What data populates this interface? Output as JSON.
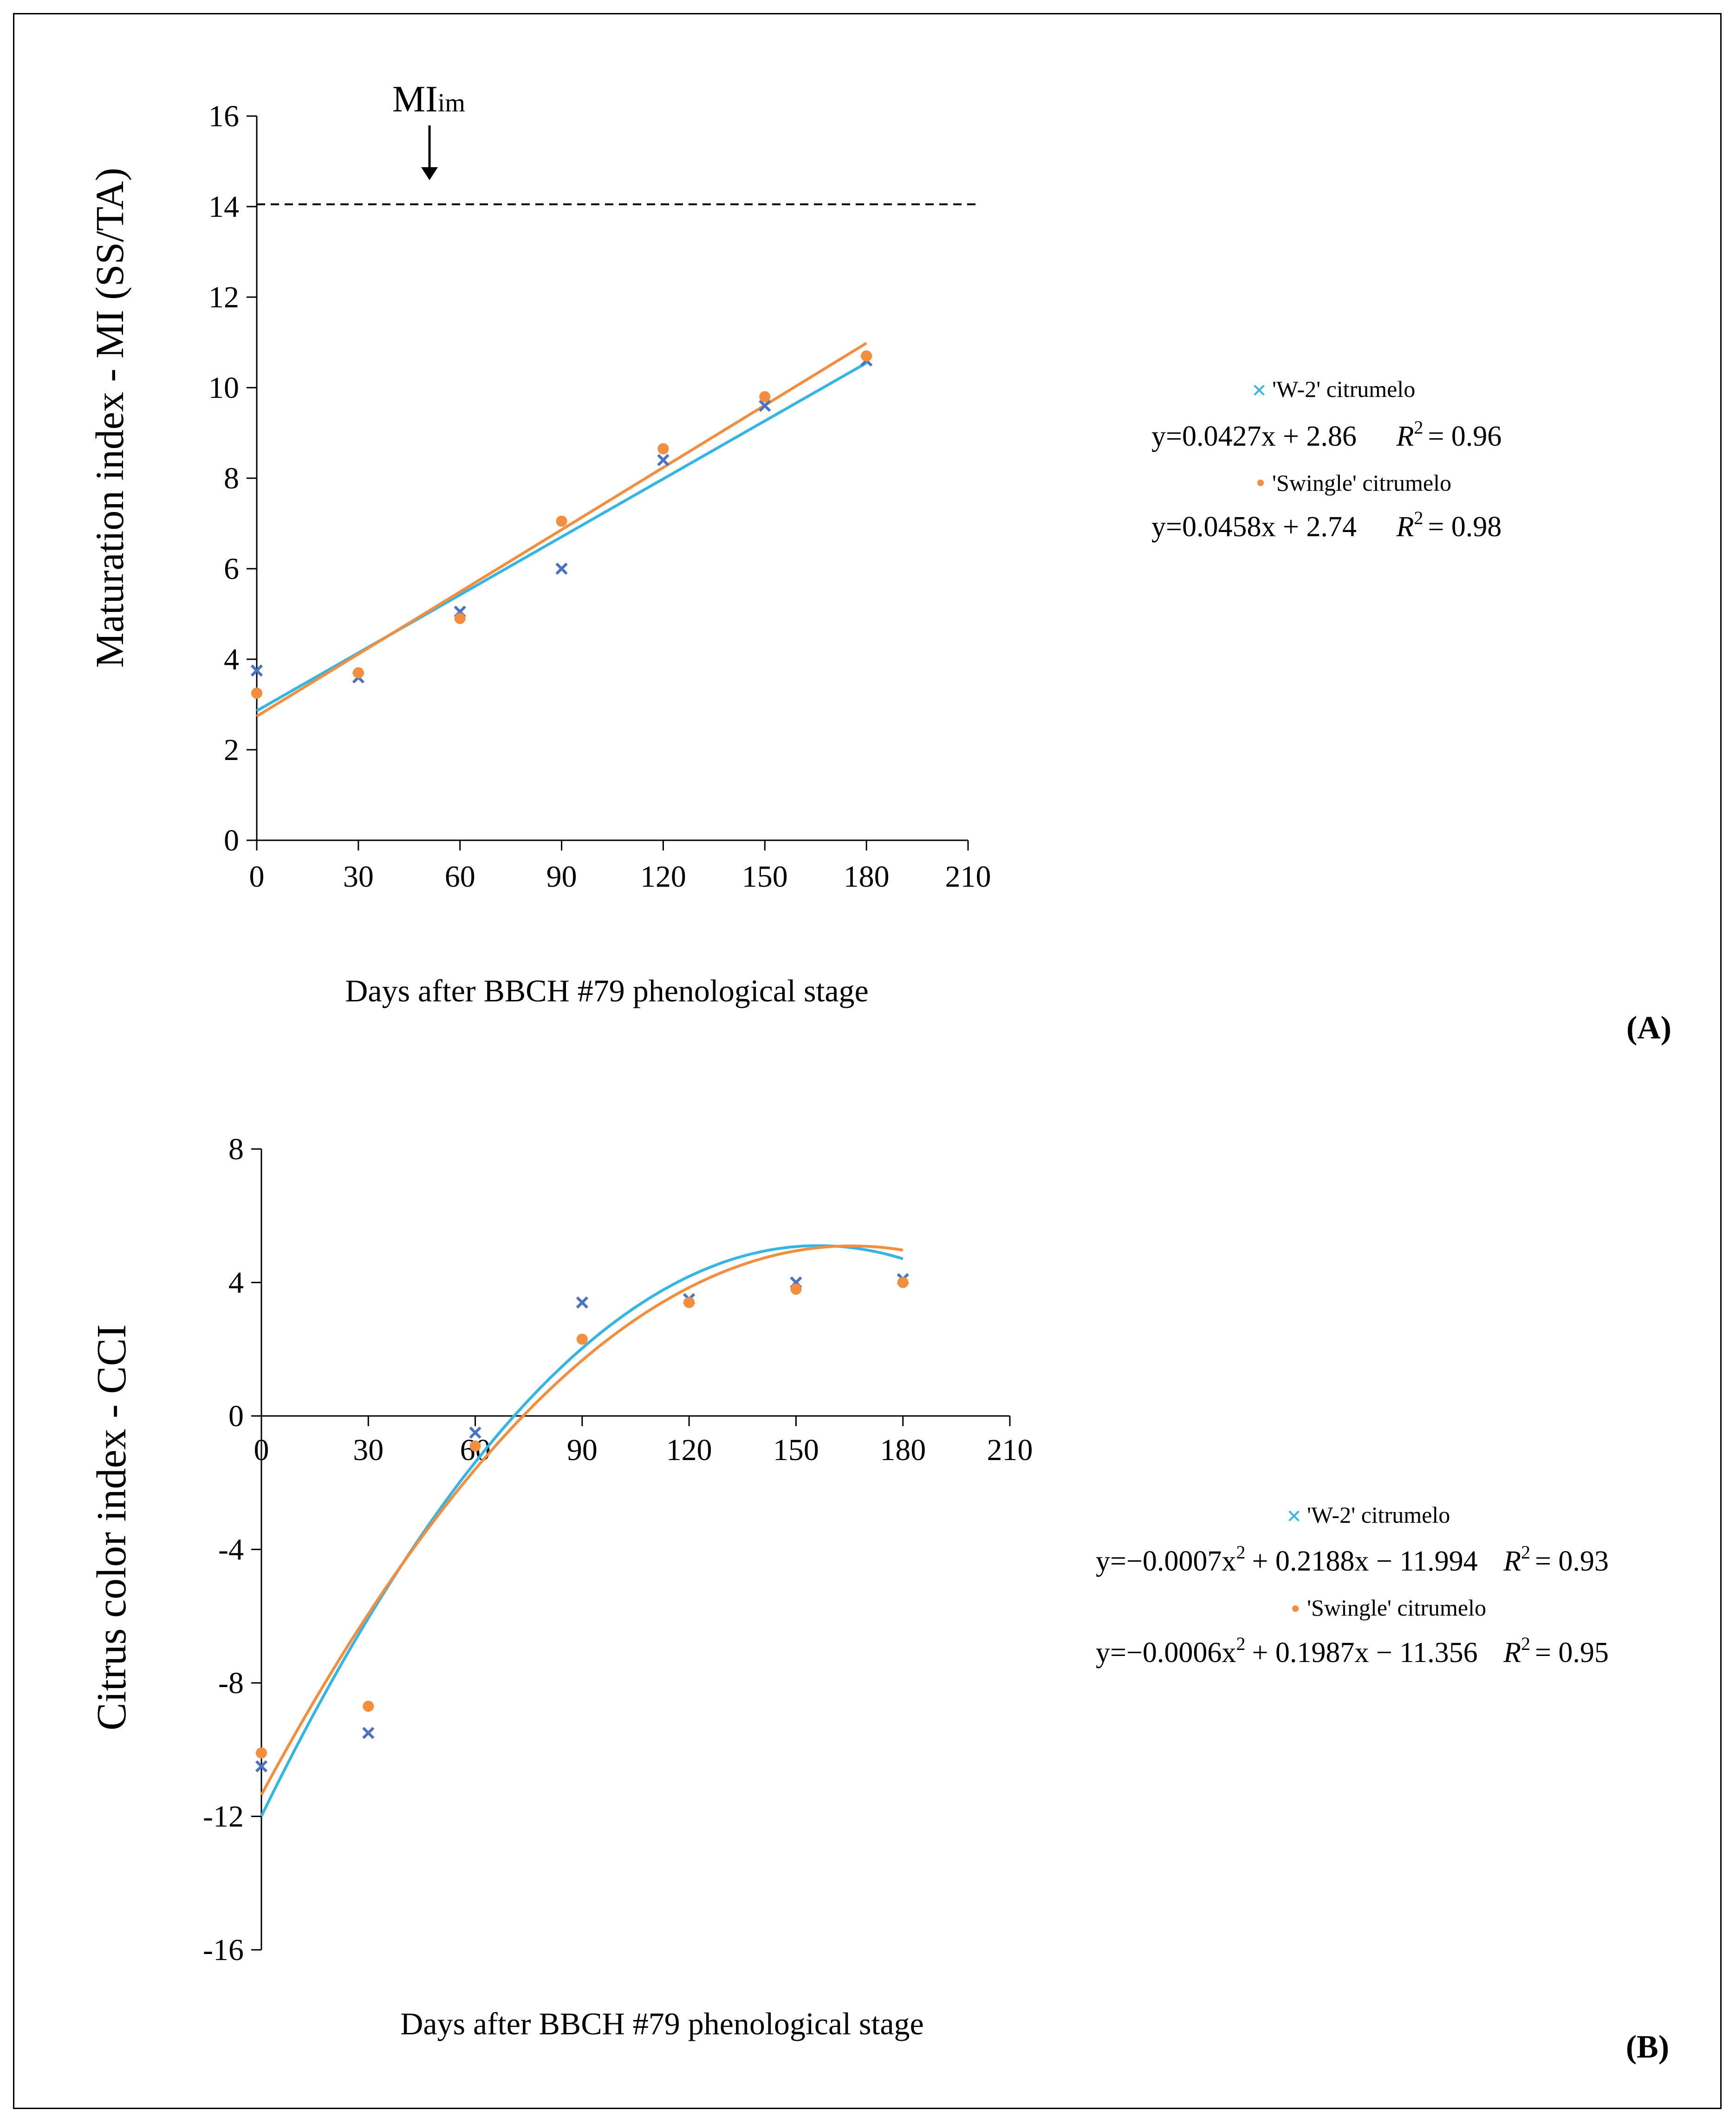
{
  "colors": {
    "w2": "#33B5E5",
    "w2_marker": "#4A73C4",
    "swingle": "#F28E3D",
    "axis": "#000000"
  },
  "chart_data": [
    {
      "panel": "(A)",
      "type": "scatter",
      "xlabel": "Days after BBCH #79 phenological stage",
      "ylabel": "Maturation index - MI (SS/TA)",
      "xlim": [
        0,
        210
      ],
      "ylim": [
        0,
        16
      ],
      "xticks": [
        "0",
        "30",
        "60",
        "90",
        "120",
        "150",
        "180",
        "210"
      ],
      "yticks": [
        "0",
        "2",
        "4",
        "6",
        "8",
        "10",
        "12",
        "14",
        "16"
      ],
      "reference_line": {
        "y": 14.05,
        "label_main": "MI",
        "label_sub": "im",
        "arrow_x": 51
      },
      "series": [
        {
          "name": "'W-2' citrumelo",
          "marker": "x",
          "x": [
            0,
            30,
            60,
            90,
            120,
            150,
            180
          ],
          "y": [
            3.75,
            3.6,
            5.05,
            6.0,
            8.4,
            9.6,
            10.6
          ],
          "fit": {
            "kind": "linear",
            "a": 0,
            "b": 0.0427,
            "c": 2.86
          },
          "equation": "y=0.0427x + 2.86",
          "r2_value": "= 0.96"
        },
        {
          "name": "'Swingle' citrumelo",
          "marker": "dot",
          "x": [
            0,
            30,
            60,
            90,
            120,
            150,
            180
          ],
          "y": [
            3.25,
            3.7,
            4.9,
            7.05,
            8.65,
            9.8,
            10.7
          ],
          "fit": {
            "kind": "linear",
            "a": 0,
            "b": 0.0458,
            "c": 2.74
          },
          "equation": "y=0.0458x + 2.74",
          "r2_value": "= 0.98"
        }
      ]
    },
    {
      "panel": "(B)",
      "type": "scatter",
      "xlabel": "Days after BBCH #79 phenological stage",
      "ylabel": "Citrus color index - CCI",
      "xlim": [
        0,
        210
      ],
      "ylim": [
        -16,
        8
      ],
      "xticks": [
        "0",
        "30",
        "60",
        "90",
        "120",
        "150",
        "180",
        "210"
      ],
      "yticks": [
        "-16",
        "-12",
        "-8",
        "-4",
        "0",
        "4",
        "8"
      ],
      "series": [
        {
          "name": "'W-2' citrumelo",
          "marker": "x",
          "x": [
            0,
            30,
            60,
            90,
            120,
            150,
            180
          ],
          "y": [
            -10.5,
            -9.5,
            -0.5,
            3.4,
            3.5,
            4.0,
            4.1
          ],
          "fit": {
            "kind": "quadratic",
            "a": -0.0007,
            "b": 0.2188,
            "c": -11.994
          },
          "equation": "y=−0.0007x2 + 0.2188x − 11.994",
          "r2_value": "= 0.93"
        },
        {
          "name": "'Swingle' citrumelo",
          "marker": "dot",
          "x": [
            0,
            30,
            60,
            90,
            120,
            150,
            180
          ],
          "y": [
            -10.1,
            -8.7,
            -0.9,
            2.3,
            3.4,
            3.8,
            4.0
          ],
          "fit": {
            "kind": "quadratic",
            "a": -0.0006,
            "b": 0.1987,
            "c": -11.356
          },
          "equation": "y=−0.0006x2 + 0.1987x − 11.356",
          "r2_value": "= 0.95"
        }
      ]
    }
  ],
  "legendA": {
    "w2_label": "'W-2' citrumelo",
    "w2_eq": "y=0.0427x + 2.86",
    "w2_r2": "= 0.96",
    "sw_label": "'Swingle' citrumelo",
    "sw_eq": "y=0.0458x + 2.74",
    "sw_r2": "= 0.98",
    "r2_symbol": "R",
    "r2_power": "2"
  },
  "legendB": {
    "w2_label": "'W-2' citrumelo",
    "w2_eq_prefix": "y=−0.0007x",
    "w2_eq_power": "2",
    "w2_eq_suffix": "+ 0.2188x − 11.994",
    "w2_r2": "= 0.93",
    "sw_label": "'Swingle' citrumelo",
    "sw_eq_prefix": "y=−0.0006x",
    "sw_eq_power": "2",
    "sw_eq_suffix": "+ 0.1987x − 11.356",
    "sw_r2": "= 0.95",
    "r2_symbol": "R",
    "r2_power": "2"
  }
}
